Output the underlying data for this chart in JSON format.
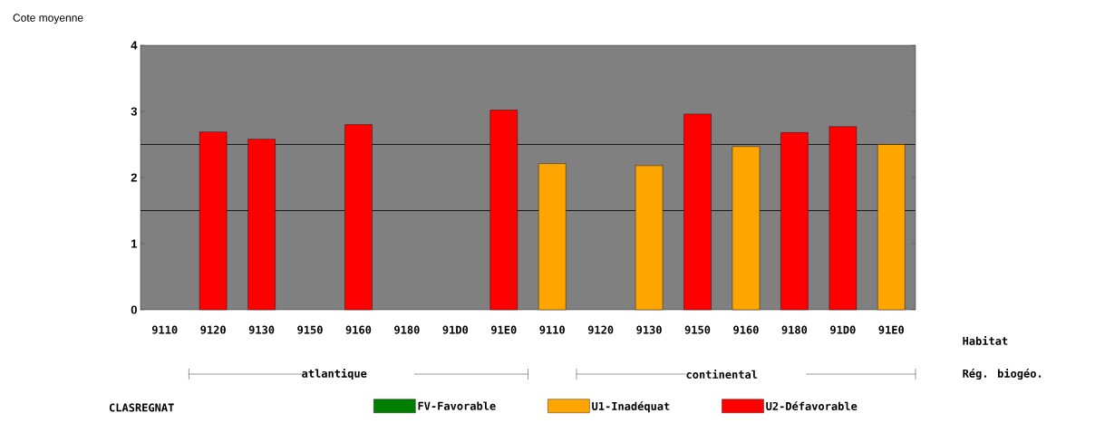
{
  "chart_data": {
    "type": "bar",
    "ylabel": "Cote moyenne",
    "xlabel": "Habitat",
    "legend_title": "CLASREGNAT",
    "categories": [
      "9110",
      "9120",
      "9130",
      "9150",
      "9160",
      "9180",
      "91D0",
      "91E0",
      "9110",
      "9120",
      "9130",
      "9150",
      "9160",
      "9180",
      "91D0",
      "91E0"
    ],
    "series": [
      {
        "name": "FV-Favorable",
        "color": "#008000",
        "values": [
          null,
          null,
          null,
          null,
          null,
          null,
          null,
          null,
          null,
          null,
          null,
          null,
          null,
          null,
          null,
          null
        ]
      },
      {
        "name": "U1-Inadéquat",
        "color": "#ffa500",
        "values": [
          null,
          null,
          null,
          null,
          null,
          null,
          null,
          null,
          2.21,
          null,
          2.18,
          null,
          2.47,
          null,
          null,
          2.5
        ]
      },
      {
        "name": "U2-Défavorable",
        "color": "#ff0000",
        "values": [
          null,
          2.69,
          2.58,
          null,
          2.8,
          null,
          null,
          3.02,
          null,
          null,
          null,
          2.96,
          null,
          2.68,
          2.77,
          null
        ]
      }
    ],
    "ylim": [
      0,
      4
    ],
    "yticks": [
      0,
      1,
      2,
      3,
      4
    ],
    "ref_lines": [
      {
        "axis": "y",
        "value": 1.5,
        "color": "#1a1a1a"
      },
      {
        "axis": "y",
        "value": 2.5,
        "color": "#1a1a1a"
      }
    ],
    "annotations": [
      "Rég. biogéo.",
      "atlantique",
      "continental"
    ],
    "legend": "bottom",
    "grid": false
  }
}
